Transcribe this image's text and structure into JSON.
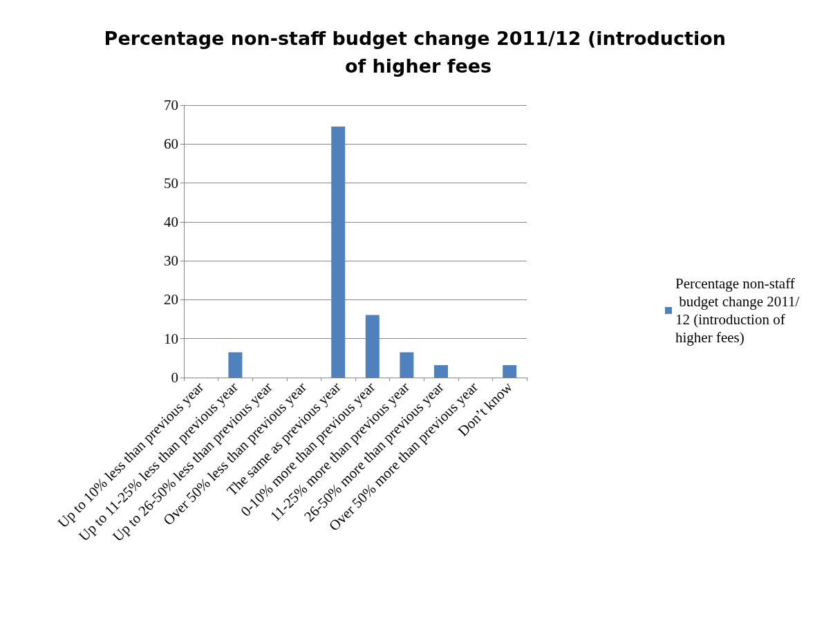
{
  "chart_data": {
    "type": "bar",
    "title": "Percentage non-staff budget change 2011/12 (introduction of higher fees",
    "categories": [
      "Up to 10% less than previous year",
      "Up to 11-25% less than previous year",
      "Up to 26-50% less than previous year",
      "Over 50% less than previous year",
      "The same as previous year",
      "0-10% more than previous year",
      "11-25% more than previous year",
      "26-50% more than previous year",
      "Over 50% more than previous year",
      "Don’t know"
    ],
    "series": [
      {
        "name": "Percentage non-staff budget change 2011/12 (introduction of higher fees)",
        "color": "#4f81bd",
        "values": [
          0,
          6.5,
          0,
          0,
          64.5,
          16.1,
          6.5,
          3.2,
          0,
          3.2
        ]
      }
    ],
    "ylim": [
      0,
      70
    ],
    "yticks": [
      0,
      10,
      20,
      30,
      40,
      50,
      60,
      70
    ],
    "grid": "y",
    "legend": "right"
  }
}
